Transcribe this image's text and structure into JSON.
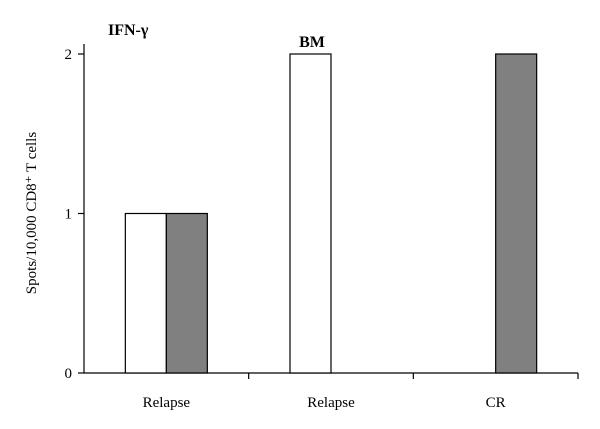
{
  "chart_data": {
    "type": "bar",
    "title": "IFN-γ",
    "annotation": "BM",
    "ylabel": "Spots/10,000 CD8⁺ T cells",
    "xlabel": "",
    "categories": [
      "Relapse",
      "Relapse",
      "CR"
    ],
    "series": [
      {
        "values": [
          1,
          2,
          0
        ],
        "color": "#ffffff"
      },
      {
        "values": [
          1,
          0,
          2
        ],
        "color": "#808080"
      }
    ],
    "yticks": [
      0,
      1,
      2
    ],
    "ylim": [
      0,
      2
    ],
    "grid": false,
    "legend": "none"
  }
}
